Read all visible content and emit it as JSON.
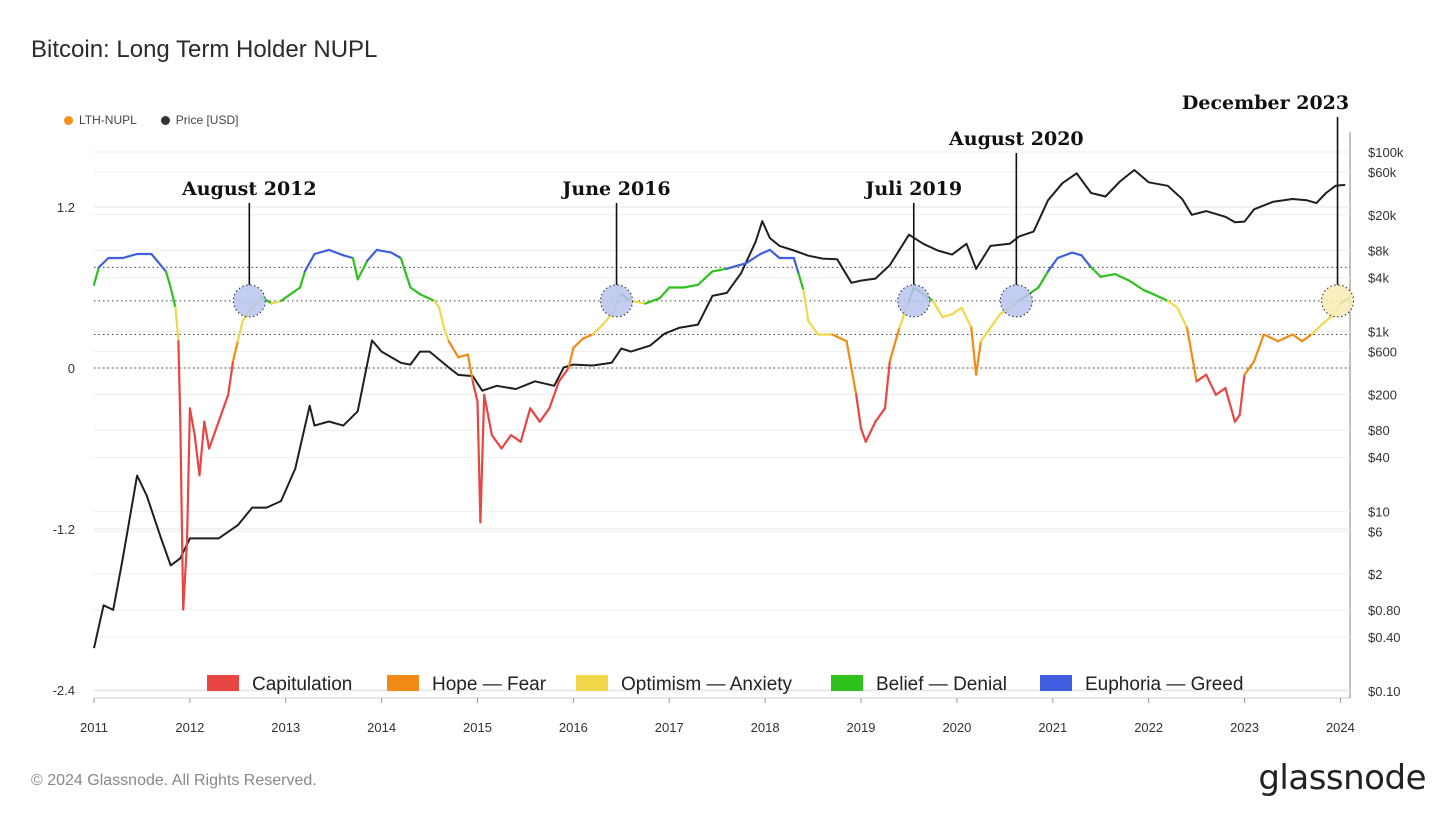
{
  "title": "Bitcoin: Long Term Holder NUPL",
  "top_legend": [
    {
      "label": "LTH-NUPL",
      "color": "#f7931a"
    },
    {
      "label": "Price [USD]",
      "color": "#333333"
    }
  ],
  "footer": "© 2024 Glassnode. All Rights Reserved.",
  "brand": "glassnode",
  "chart_data": {
    "type": "line",
    "title": "Bitcoin: Long Term Holder NUPL",
    "x_ticks": [
      "2011",
      "2012",
      "2013",
      "2014",
      "2015",
      "2016",
      "2017",
      "2018",
      "2019",
      "2020",
      "2021",
      "2022",
      "2023",
      "2024"
    ],
    "x_range": [
      2011.0,
      2024.1
    ],
    "left_axis": {
      "ticks": [
        1.2,
        0,
        -1.2,
        -2.4
      ],
      "range": [
        -2.4,
        1.2
      ],
      "labels": [
        "1.2",
        "0",
        "-1.2",
        "-2.4"
      ]
    },
    "right_axis": {
      "scale": "log",
      "ticks": [
        100000,
        60000,
        20000,
        8000,
        4000,
        1000,
        600,
        200,
        80,
        40,
        10,
        6,
        2,
        0.8,
        0.4,
        0.1
      ],
      "labels": [
        "$100k",
        "$60k",
        "$20k",
        "$8k",
        "$4k",
        "$1k",
        "$600",
        "$200",
        "$80",
        "$40",
        "$10",
        "$6",
        "$2",
        "$0.80",
        "$0.40",
        "$0.10"
      ],
      "range": [
        0.1,
        100000
      ]
    },
    "nupl_levels": [
      0.75,
      0.5,
      0.25,
      0
    ],
    "zones": [
      {
        "label": "Capitulation",
        "color": "#e84545"
      },
      {
        "label": "Hope — Fear",
        "color": "#f28a16"
      },
      {
        "label": "Optimism — Anxiety",
        "color": "#f1d84a"
      },
      {
        "label": "Belief — Denial",
        "color": "#2fc21e"
      },
      {
        "label": "Euphoria — Greed",
        "color": "#3f5fe0"
      }
    ],
    "series": [
      {
        "name": "LTH-NUPL",
        "points": [
          [
            2011.0,
            0.62
          ],
          [
            2011.05,
            0.75
          ],
          [
            2011.15,
            0.82
          ],
          [
            2011.3,
            0.82
          ],
          [
            2011.45,
            0.85
          ],
          [
            2011.6,
            0.85
          ],
          [
            2011.75,
            0.72
          ],
          [
            2011.8,
            0.6
          ],
          [
            2011.85,
            0.45
          ],
          [
            2011.88,
            0.2
          ],
          [
            2011.9,
            -0.4
          ],
          [
            2011.93,
            -1.8
          ],
          [
            2011.97,
            -1.3
          ],
          [
            2012.0,
            -0.3
          ],
          [
            2012.05,
            -0.5
          ],
          [
            2012.1,
            -0.8
          ],
          [
            2012.15,
            -0.4
          ],
          [
            2012.2,
            -0.6
          ],
          [
            2012.3,
            -0.4
          ],
          [
            2012.4,
            -0.2
          ],
          [
            2012.45,
            0.05
          ],
          [
            2012.5,
            0.2
          ],
          [
            2012.55,
            0.35
          ],
          [
            2012.65,
            0.45
          ],
          [
            2012.75,
            0.53
          ],
          [
            2012.85,
            0.48
          ],
          [
            2012.95,
            0.5
          ],
          [
            2013.05,
            0.55
          ],
          [
            2013.15,
            0.6
          ],
          [
            2013.2,
            0.72
          ],
          [
            2013.3,
            0.85
          ],
          [
            2013.45,
            0.88
          ],
          [
            2013.6,
            0.84
          ],
          [
            2013.7,
            0.82
          ],
          [
            2013.75,
            0.66
          ],
          [
            2013.85,
            0.8
          ],
          [
            2013.95,
            0.88
          ],
          [
            2014.1,
            0.86
          ],
          [
            2014.2,
            0.82
          ],
          [
            2014.3,
            0.6
          ],
          [
            2014.4,
            0.55
          ],
          [
            2014.55,
            0.5
          ],
          [
            2014.6,
            0.45
          ],
          [
            2014.65,
            0.3
          ],
          [
            2014.7,
            0.2
          ],
          [
            2014.8,
            0.08
          ],
          [
            2014.9,
            0.1
          ],
          [
            2014.95,
            -0.1
          ],
          [
            2015.0,
            -0.25
          ],
          [
            2015.03,
            -1.15
          ],
          [
            2015.07,
            -0.2
          ],
          [
            2015.15,
            -0.5
          ],
          [
            2015.25,
            -0.6
          ],
          [
            2015.35,
            -0.5
          ],
          [
            2015.45,
            -0.55
          ],
          [
            2015.55,
            -0.3
          ],
          [
            2015.65,
            -0.4
          ],
          [
            2015.75,
            -0.3
          ],
          [
            2015.85,
            -0.1
          ],
          [
            2015.95,
            0.0
          ],
          [
            2016.0,
            0.15
          ],
          [
            2016.1,
            0.22
          ],
          [
            2016.2,
            0.25
          ],
          [
            2016.3,
            0.32
          ],
          [
            2016.4,
            0.4
          ],
          [
            2016.5,
            0.55
          ],
          [
            2016.6,
            0.5
          ],
          [
            2016.75,
            0.48
          ],
          [
            2016.9,
            0.52
          ],
          [
            2017.0,
            0.6
          ],
          [
            2017.15,
            0.6
          ],
          [
            2017.3,
            0.62
          ],
          [
            2017.45,
            0.72
          ],
          [
            2017.6,
            0.74
          ],
          [
            2017.8,
            0.78
          ],
          [
            2017.95,
            0.85
          ],
          [
            2018.05,
            0.88
          ],
          [
            2018.15,
            0.82
          ],
          [
            2018.3,
            0.82
          ],
          [
            2018.35,
            0.7
          ],
          [
            2018.4,
            0.58
          ],
          [
            2018.45,
            0.35
          ],
          [
            2018.55,
            0.25
          ],
          [
            2018.7,
            0.25
          ],
          [
            2018.85,
            0.2
          ],
          [
            2018.95,
            -0.2
          ],
          [
            2019.0,
            -0.45
          ],
          [
            2019.05,
            -0.55
          ],
          [
            2019.15,
            -0.4
          ],
          [
            2019.25,
            -0.3
          ],
          [
            2019.3,
            0.05
          ],
          [
            2019.4,
            0.3
          ],
          [
            2019.5,
            0.5
          ],
          [
            2019.55,
            0.6
          ],
          [
            2019.65,
            0.55
          ],
          [
            2019.75,
            0.5
          ],
          [
            2019.85,
            0.38
          ],
          [
            2019.95,
            0.4
          ],
          [
            2020.05,
            0.45
          ],
          [
            2020.15,
            0.3
          ],
          [
            2020.2,
            -0.05
          ],
          [
            2020.25,
            0.2
          ],
          [
            2020.35,
            0.3
          ],
          [
            2020.45,
            0.4
          ],
          [
            2020.55,
            0.45
          ],
          [
            2020.65,
            0.5
          ],
          [
            2020.75,
            0.55
          ],
          [
            2020.85,
            0.6
          ],
          [
            2020.95,
            0.72
          ],
          [
            2021.05,
            0.82
          ],
          [
            2021.2,
            0.86
          ],
          [
            2021.3,
            0.84
          ],
          [
            2021.4,
            0.75
          ],
          [
            2021.5,
            0.68
          ],
          [
            2021.65,
            0.7
          ],
          [
            2021.8,
            0.65
          ],
          [
            2021.95,
            0.58
          ],
          [
            2022.05,
            0.55
          ],
          [
            2022.2,
            0.5
          ],
          [
            2022.3,
            0.45
          ],
          [
            2022.4,
            0.3
          ],
          [
            2022.45,
            0.1
          ],
          [
            2022.5,
            -0.1
          ],
          [
            2022.6,
            -0.05
          ],
          [
            2022.7,
            -0.2
          ],
          [
            2022.8,
            -0.15
          ],
          [
            2022.9,
            -0.4
          ],
          [
            2022.95,
            -0.35
          ],
          [
            2023.0,
            -0.05
          ],
          [
            2023.1,
            0.05
          ],
          [
            2023.2,
            0.25
          ],
          [
            2023.35,
            0.2
          ],
          [
            2023.5,
            0.25
          ],
          [
            2023.6,
            0.2
          ],
          [
            2023.7,
            0.25
          ],
          [
            2023.8,
            0.32
          ],
          [
            2023.9,
            0.38
          ],
          [
            2024.0,
            0.48
          ],
          [
            2024.08,
            0.52
          ]
        ]
      },
      {
        "name": "Price [USD]",
        "points": [
          [
            2011.0,
            0.3
          ],
          [
            2011.1,
            0.9
          ],
          [
            2011.2,
            0.8
          ],
          [
            2011.3,
            3
          ],
          [
            2011.45,
            25
          ],
          [
            2011.55,
            15
          ],
          [
            2011.7,
            5
          ],
          [
            2011.8,
            2.5
          ],
          [
            2011.9,
            3
          ],
          [
            2012.0,
            5
          ],
          [
            2012.1,
            5
          ],
          [
            2012.3,
            5
          ],
          [
            2012.5,
            7
          ],
          [
            2012.65,
            11
          ],
          [
            2012.8,
            11
          ],
          [
            2012.95,
            13
          ],
          [
            2013.1,
            30
          ],
          [
            2013.25,
            150
          ],
          [
            2013.3,
            90
          ],
          [
            2013.45,
            100
          ],
          [
            2013.6,
            90
          ],
          [
            2013.75,
            130
          ],
          [
            2013.9,
            800
          ],
          [
            2014.0,
            600
          ],
          [
            2014.2,
            450
          ],
          [
            2014.3,
            430
          ],
          [
            2014.4,
            600
          ],
          [
            2014.5,
            600
          ],
          [
            2014.7,
            400
          ],
          [
            2014.8,
            330
          ],
          [
            2014.95,
            320
          ],
          [
            2015.05,
            220
          ],
          [
            2015.2,
            250
          ],
          [
            2015.4,
            230
          ],
          [
            2015.6,
            280
          ],
          [
            2015.8,
            250
          ],
          [
            2015.9,
            400
          ],
          [
            2016.0,
            430
          ],
          [
            2016.2,
            420
          ],
          [
            2016.4,
            450
          ],
          [
            2016.5,
            650
          ],
          [
            2016.6,
            600
          ],
          [
            2016.8,
            700
          ],
          [
            2016.95,
            950
          ],
          [
            2017.1,
            1100
          ],
          [
            2017.3,
            1200
          ],
          [
            2017.45,
            2500
          ],
          [
            2017.6,
            2700
          ],
          [
            2017.75,
            4500
          ],
          [
            2017.9,
            10000
          ],
          [
            2017.97,
            17000
          ],
          [
            2018.05,
            11000
          ],
          [
            2018.15,
            9000
          ],
          [
            2018.3,
            8000
          ],
          [
            2018.45,
            7000
          ],
          [
            2018.6,
            6500
          ],
          [
            2018.75,
            6400
          ],
          [
            2018.9,
            3500
          ],
          [
            2019.0,
            3700
          ],
          [
            2019.15,
            3900
          ],
          [
            2019.3,
            5500
          ],
          [
            2019.5,
            12000
          ],
          [
            2019.65,
            9500
          ],
          [
            2019.8,
            8000
          ],
          [
            2019.95,
            7200
          ],
          [
            2020.1,
            9500
          ],
          [
            2020.2,
            5000
          ],
          [
            2020.35,
            9000
          ],
          [
            2020.55,
            9500
          ],
          [
            2020.65,
            11500
          ],
          [
            2020.8,
            13000
          ],
          [
            2020.95,
            29000
          ],
          [
            2021.1,
            45000
          ],
          [
            2021.25,
            58000
          ],
          [
            2021.4,
            35000
          ],
          [
            2021.55,
            32000
          ],
          [
            2021.7,
            47000
          ],
          [
            2021.85,
            63000
          ],
          [
            2022.0,
            46000
          ],
          [
            2022.2,
            42000
          ],
          [
            2022.35,
            30000
          ],
          [
            2022.45,
            20000
          ],
          [
            2022.6,
            22000
          ],
          [
            2022.8,
            19000
          ],
          [
            2022.9,
            16500
          ],
          [
            2023.0,
            16800
          ],
          [
            2023.1,
            23000
          ],
          [
            2023.3,
            28000
          ],
          [
            2023.5,
            30000
          ],
          [
            2023.65,
            29000
          ],
          [
            2023.75,
            27000
          ],
          [
            2023.85,
            35000
          ],
          [
            2023.95,
            42000
          ],
          [
            2024.05,
            43000
          ]
        ]
      }
    ],
    "annotations": [
      {
        "label": "August 2012",
        "x": 2012.62,
        "nupl": 0.5
      },
      {
        "label": "June 2016",
        "x": 2016.45,
        "nupl": 0.5
      },
      {
        "label": "Juli 2019",
        "x": 2019.55,
        "nupl": 0.5
      },
      {
        "label": "August 2020",
        "x": 2020.62,
        "nupl": 0.5
      },
      {
        "label": "December 2023",
        "x": 2023.97,
        "nupl": 0.5
      }
    ]
  }
}
